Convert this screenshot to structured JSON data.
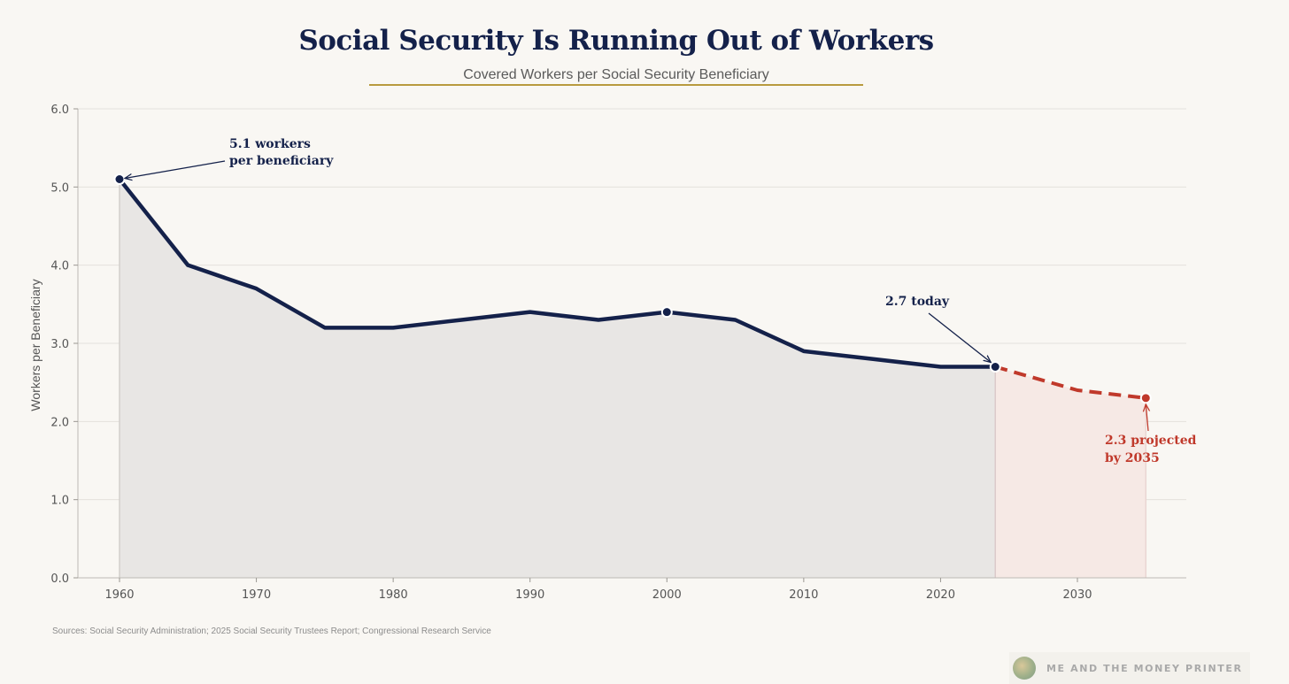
{
  "title": "Social Security Is Running Out of Workers",
  "subtitle": "Covered Workers per Social Security Beneficiary",
  "sources": "Sources: Social Security Administration; 2025 Social Security Trustees Report; Congressional Research Service",
  "brand": "ME AND THE MONEY PRINTER",
  "colors": {
    "historical": "#14214a",
    "projected": "#c0392b",
    "historical_fill": "#e8e6e4",
    "projected_fill": "#f6e9e5",
    "accent_rule": "#b89a3e",
    "background": "#f9f7f3"
  },
  "chart_data": {
    "type": "line",
    "title": "Social Security Is Running Out of Workers",
    "subtitle": "Covered Workers per Social Security Beneficiary",
    "xlabel": "",
    "ylabel": "Workers per Beneficiary",
    "xlim": [
      1957,
      2038
    ],
    "ylim": [
      0,
      6
    ],
    "xticks": [
      1960,
      1970,
      1980,
      1990,
      2000,
      2010,
      2020,
      2030
    ],
    "yticks": [
      "0.0",
      "1.0",
      "2.0",
      "3.0",
      "4.0",
      "5.0",
      "6.0"
    ],
    "grid": true,
    "series": [
      {
        "style": "solid",
        "x": [
          1960,
          1965,
          1970,
          1975,
          1980,
          1985,
          1990,
          1995,
          2000,
          2005,
          2010,
          2015,
          2020,
          2024
        ],
        "y": [
          5.1,
          4.0,
          3.7,
          3.2,
          3.2,
          3.3,
          3.4,
          3.3,
          3.4,
          3.3,
          2.9,
          2.8,
          2.7,
          2.7
        ]
      },
      {
        "style": "dashed",
        "x": [
          2024,
          2030,
          2035
        ],
        "y": [
          2.7,
          2.4,
          2.3
        ]
      }
    ],
    "markers": [
      {
        "x": 1960,
        "y": 5.1
      },
      {
        "x": 2000,
        "y": 3.4
      },
      {
        "x": 2024,
        "y": 2.7
      },
      {
        "x": 2035,
        "y": 2.3
      }
    ],
    "annotations": [
      {
        "lines": [
          "5.1 workers",
          "per beneficiary"
        ],
        "x": 1960,
        "y": 5.1
      },
      {
        "lines": [
          "2.7 today"
        ],
        "x": 2024,
        "y": 2.7
      },
      {
        "lines": [
          "2.3 projected",
          "by 2035"
        ],
        "x": 2035,
        "y": 2.3
      }
    ]
  }
}
